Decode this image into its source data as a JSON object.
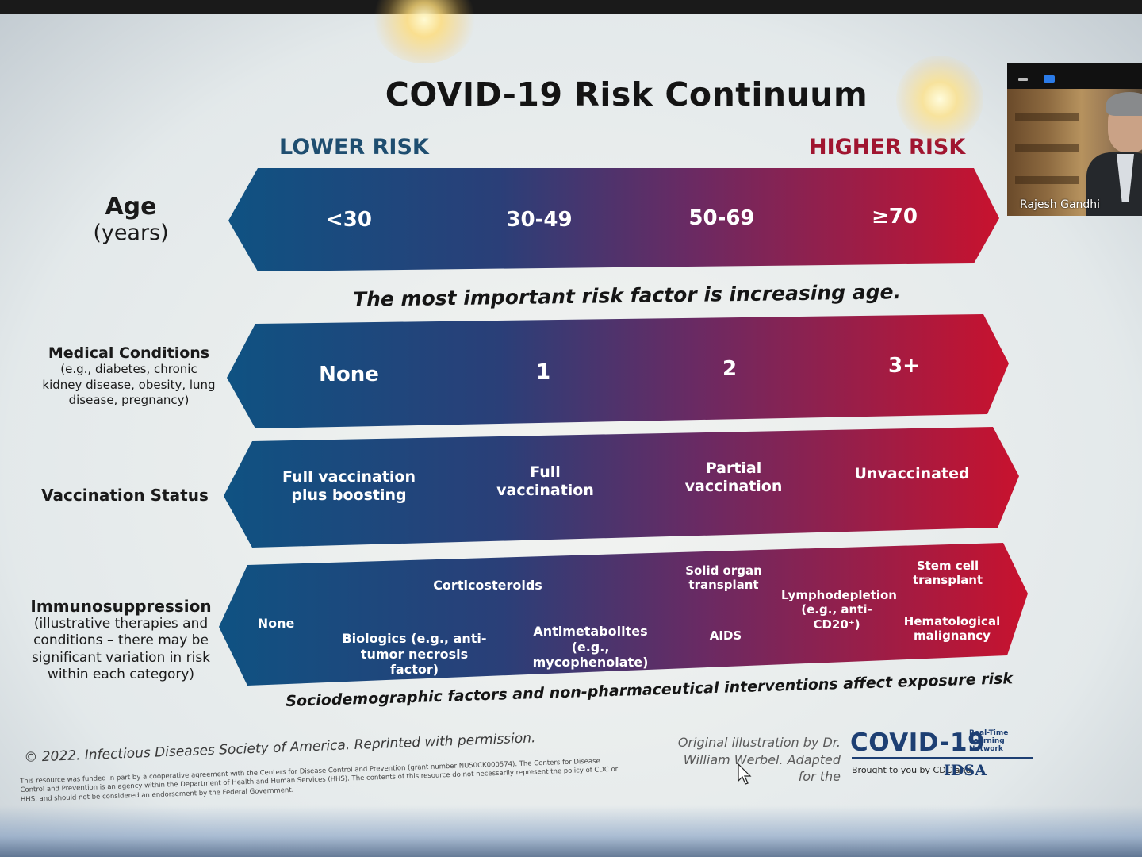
{
  "slide": {
    "title": "COVID-19 Risk Continuum",
    "lower_risk": "LOWER RISK",
    "higher_risk": "HIGHER RISK",
    "rows": {
      "age": {
        "label_line1": "Age",
        "label_line2": "(years)",
        "cells": [
          "<30",
          "30-49",
          "50-69",
          "≥70"
        ]
      },
      "age_note": "The most important risk factor is increasing age.",
      "medical": {
        "label_title": "Medical Conditions",
        "label_sub": "(e.g., diabetes, chronic kidney disease, obesity, lung disease, pregnancy)",
        "cells": [
          "None",
          "1",
          "2",
          "3+"
        ]
      },
      "vaccination": {
        "label": "Vaccination Status",
        "cells": [
          "Full vaccination plus boosting",
          "Full vaccination",
          "Partial vaccination",
          "Unvaccinated"
        ]
      },
      "immuno": {
        "label_title": "Immunosuppression",
        "label_sub": "(illustrative therapies and conditions – there may be significant variation in risk within each category)",
        "none": "None",
        "corticosteroids": "Corticosteroids",
        "biologics": "Biologics (e.g., anti-tumor necrosis factor)",
        "antimetabolites": "Antimetabolites (e.g., mycophenolate)",
        "solid_organ": "Solid organ transplant",
        "aids": "AIDS",
        "lymphodepletion": "Lymphodepletion (e.g., anti-CD20⁺)",
        "stem_cell": "Stem cell transplant",
        "hematological": "Hematological malignancy"
      }
    },
    "bottom_note": "Sociodemographic factors and non-pharmaceutical interventions affect exposure risk",
    "copyright": "© 2022. Infectious Diseases Society of America. Reprinted with permission.",
    "fineprint": "This resource was funded in part by a cooperative agreement with the Centers for Disease Control and Prevention (grant number NU50CK000574). The Centers for Disease Control and Prevention is an agency within the Department of Health and Human Services (HHS). The contents of this resource do not necessarily represent the policy of CDC or HHS, and should not be considered an endorsement by the Federal Government.",
    "credit": "Original illustration by Dr. William Werbel. Adapted for the",
    "logo_main": "COVID-19",
    "logo_tag": "Real-Time Learning Network",
    "logo_sub": "Brought to you by CDC and",
    "logo_idsa": "IDSA"
  },
  "video": {
    "participant_name": "Rajesh Gandhi"
  },
  "colors": {
    "low": "#0f4d7e",
    "mid": "#5a2a6a",
    "high": "#c4122e",
    "lower_text": "#1f4e70",
    "higher_text": "#a01530"
  }
}
